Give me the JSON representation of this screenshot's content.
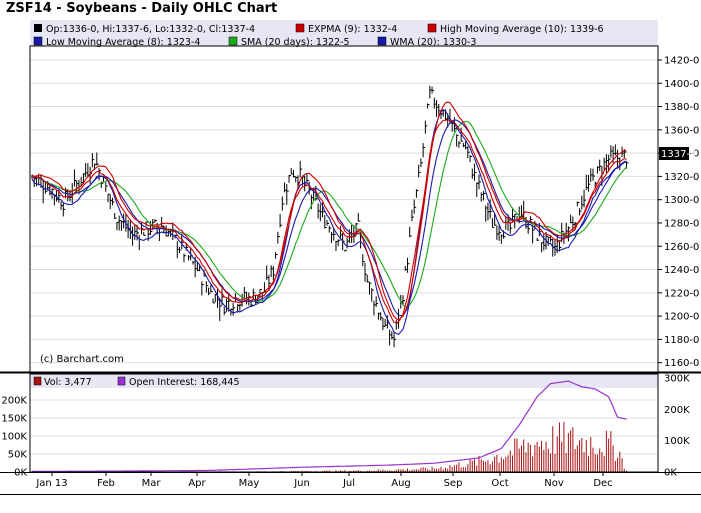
{
  "header": {
    "title": "ZSF14 - Soybeans - Daily OHLC Chart"
  },
  "legend": {
    "ohlc": "Op:1336-0, Hi:1337-6, Lo:1332-0, Cl:1337-4",
    "expma": "EXPMA (9): 1332-4",
    "high_ma": "High Moving Average (10): 1339-6",
    "low_ma": "Low Moving Average (8): 1323-4",
    "sma": "SMA (20 days): 1322-5",
    "wma": "WMA (20): 1330-3",
    "volume": "Vol: 3,477",
    "open_interest": "Open Interest: 168,445"
  },
  "copyright": "(c) Barchart.com",
  "last_price_tag": "1337-4",
  "colors": {
    "price_bars": "#000000",
    "expma": "#cc0000",
    "high_ma": "#cc0000",
    "low_ma": "#1a1aaa",
    "sma": "#1aaa1a",
    "wma": "#1a1aaa",
    "volume": "#aa1111",
    "open_interest": "#9933cc",
    "legend_band": "#e6e6f5"
  },
  "chart_data": [
    {
      "type": "line",
      "title": "ZSF14 - Soybeans - Daily OHLC Chart",
      "x_labels": [
        "Jan 13",
        "Feb",
        "Mar",
        "Apr",
        "May",
        "Jun",
        "Jul",
        "Aug",
        "Sep",
        "Oct",
        "Nov",
        "Dec"
      ],
      "y_ticks": [
        "1160-0",
        "1180-0",
        "1200-0",
        "1220-0",
        "1240-0",
        "1260-0",
        "1280-0",
        "1300-0",
        "1320-0",
        "1340-0",
        "1360-0",
        "1380-0",
        "1400-0",
        "1420-0"
      ],
      "ylim": [
        1152,
        1432
      ],
      "grid": true,
      "close_anchors": [
        [
          0,
          1320
        ],
        [
          8,
          1310
        ],
        [
          14,
          1298
        ],
        [
          22,
          1318
        ],
        [
          28,
          1335
        ],
        [
          33,
          1310
        ],
        [
          38,
          1285
        ],
        [
          45,
          1270
        ],
        [
          52,
          1275
        ],
        [
          58,
          1278
        ],
        [
          62,
          1270
        ],
        [
          68,
          1255
        ],
        [
          74,
          1240
        ],
        [
          80,
          1220
        ],
        [
          86,
          1210
        ],
        [
          92,
          1215
        ],
        [
          98,
          1215
        ],
        [
          104,
          1222
        ],
        [
          108,
          1240
        ],
        [
          112,
          1300
        ],
        [
          116,
          1325
        ],
        [
          120,
          1320
        ],
        [
          126,
          1300
        ],
        [
          130,
          1285
        ],
        [
          136,
          1270
        ],
        [
          140,
          1260
        ],
        [
          146,
          1275
        ],
        [
          150,
          1230
        ],
        [
          154,
          1210
        ],
        [
          158,
          1190
        ],
        [
          162,
          1180
        ],
        [
          166,
          1220
        ],
        [
          170,
          1280
        ],
        [
          174,
          1330
        ],
        [
          178,
          1390
        ],
        [
          182,
          1380
        ],
        [
          186,
          1370
        ],
        [
          190,
          1355
        ],
        [
          194,
          1345
        ],
        [
          198,
          1320
        ],
        [
          202,
          1300
        ],
        [
          206,
          1280
        ],
        [
          210,
          1275
        ],
        [
          214,
          1275
        ],
        [
          218,
          1290
        ],
        [
          222,
          1280
        ],
        [
          226,
          1270
        ],
        [
          230,
          1262
        ],
        [
          234,
          1258
        ],
        [
          238,
          1270
        ],
        [
          242,
          1282
        ],
        [
          246,
          1300
        ],
        [
          250,
          1315
        ],
        [
          254,
          1325
        ],
        [
          258,
          1335
        ],
        [
          262,
          1336
        ],
        [
          266,
          1337
        ]
      ],
      "series": [
        {
          "name": "EXPMA (9)",
          "last": "1332-4"
        },
        {
          "name": "High Moving Average (10)",
          "last": "1339-6"
        },
        {
          "name": "Low Moving Average (8)",
          "last": "1323-4"
        },
        {
          "name": "SMA (20 days)",
          "last": "1322-5"
        },
        {
          "name": "WMA (20)",
          "last": "1330-3"
        }
      ]
    },
    {
      "type": "bar",
      "title": "Volume / Open Interest",
      "y_left_ticks": [
        "0K",
        "50K",
        "100K",
        "150K",
        "200K"
      ],
      "y_right_ticks": [
        "0K",
        "100K",
        "200K",
        "300K"
      ],
      "volume_ylim": [
        0,
        200000
      ],
      "oi_ylim": [
        0,
        300000
      ],
      "open_interest_anchors": [
        [
          0,
          2000
        ],
        [
          40,
          3000
        ],
        [
          80,
          5000
        ],
        [
          120,
          15000
        ],
        [
          160,
          22000
        ],
        [
          180,
          28000
        ],
        [
          200,
          45000
        ],
        [
          210,
          75000
        ],
        [
          218,
          150000
        ],
        [
          226,
          240000
        ],
        [
          232,
          282000
        ],
        [
          240,
          290000
        ],
        [
          246,
          272000
        ],
        [
          252,
          265000
        ],
        [
          258,
          240000
        ],
        [
          262,
          175000
        ],
        [
          266,
          168445
        ]
      ],
      "volume_anchors": [
        [
          0,
          500
        ],
        [
          100,
          1500
        ],
        [
          150,
          4000
        ],
        [
          180,
          10000
        ],
        [
          200,
          30000
        ],
        [
          215,
          60000
        ],
        [
          225,
          85000
        ],
        [
          235,
          95000
        ],
        [
          245,
          90000
        ],
        [
          255,
          85000
        ],
        [
          262,
          70000
        ],
        [
          266,
          3477
        ]
      ]
    }
  ]
}
